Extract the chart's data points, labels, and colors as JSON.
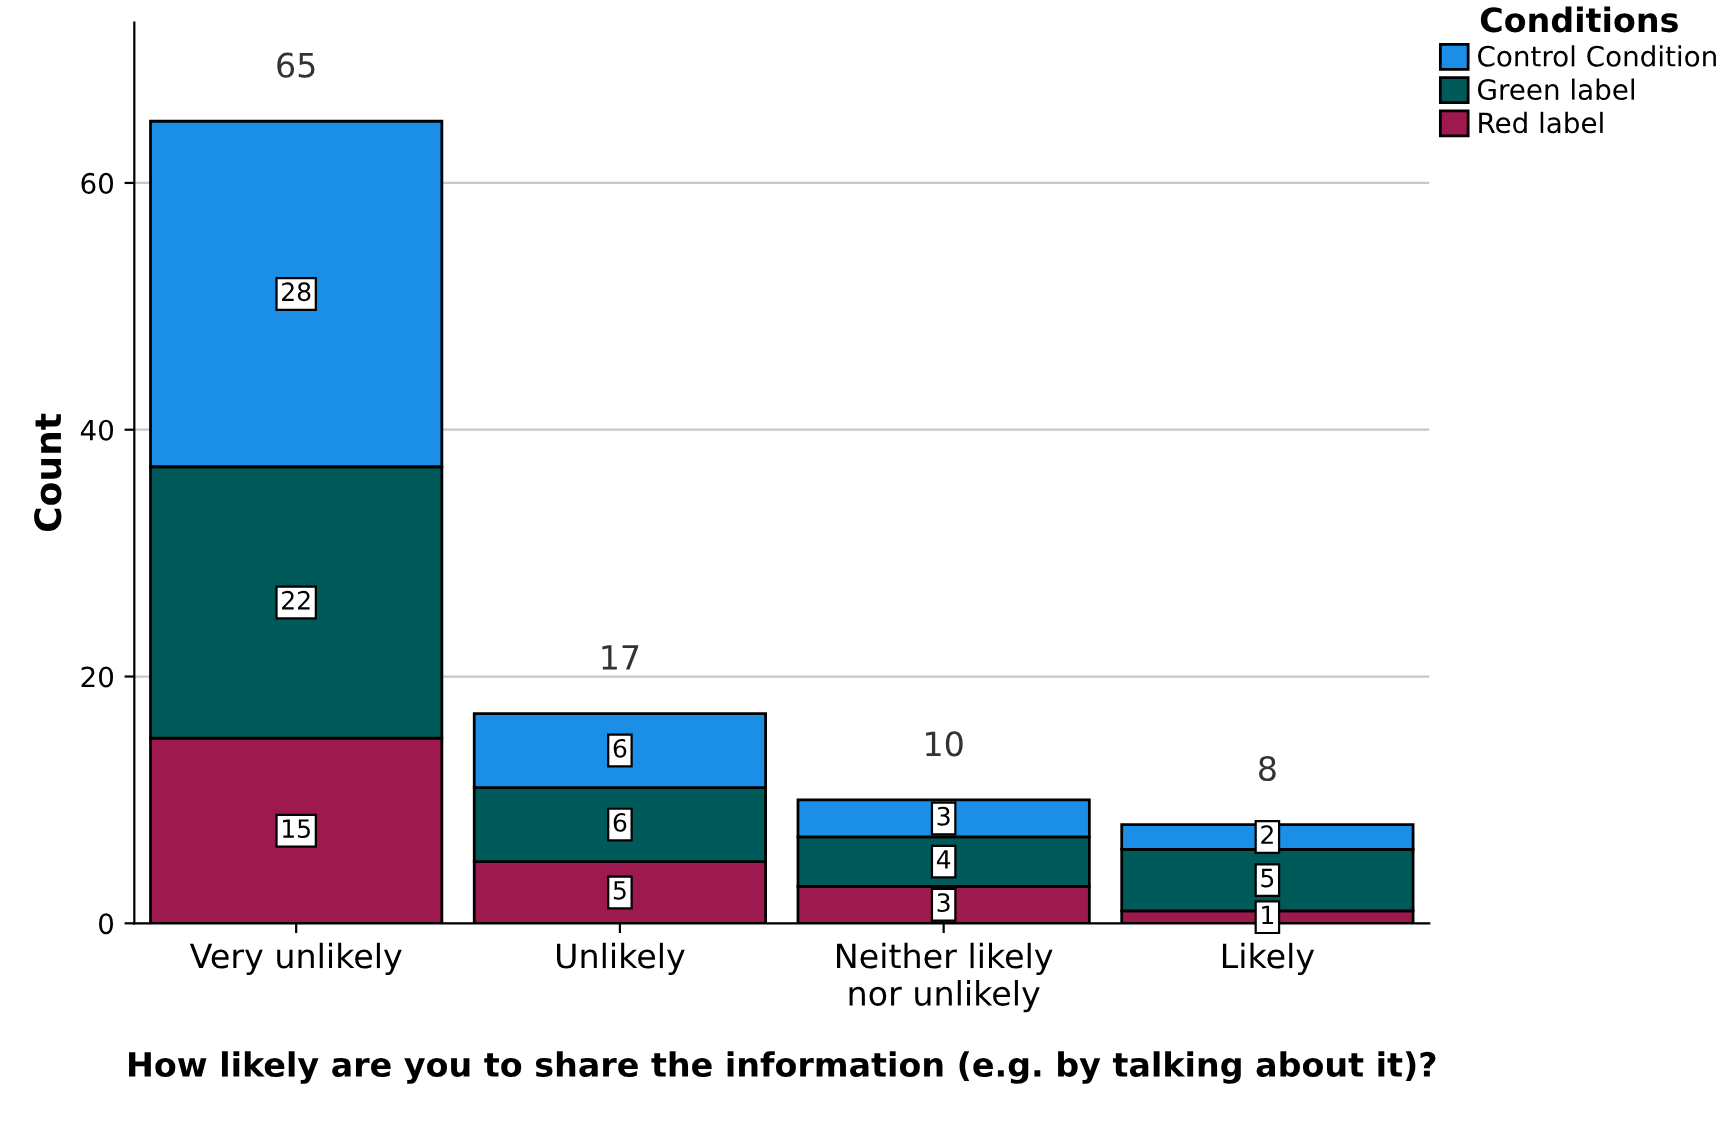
{
  "chart_data": {
    "type": "bar",
    "stacked": true,
    "ylabel": "Count",
    "xlabel": "How likely are you to share the information (e.g. by talking about it)?",
    "categories": [
      "Very unlikely",
      "Unlikely",
      "Neither likely\nnor unlikely",
      "Likely"
    ],
    "series": [
      {
        "name": "Red label",
        "color": "#9e1a4e",
        "values": [
          15,
          5,
          3,
          1
        ]
      },
      {
        "name": "Green label",
        "color": "#005a5a",
        "values": [
          22,
          6,
          4,
          5
        ]
      },
      {
        "name": "Control Condition",
        "color": "#1b8fe6",
        "values": [
          28,
          6,
          3,
          2
        ]
      }
    ],
    "totals": [
      "65",
      "17",
      "10",
      "8"
    ],
    "data_labels": true,
    "legend": "top right",
    "legend_title": "Conditions",
    "grid": "y",
    "ylim": [
      0,
      73
    ],
    "yticks": [
      0,
      20,
      40,
      60
    ]
  }
}
